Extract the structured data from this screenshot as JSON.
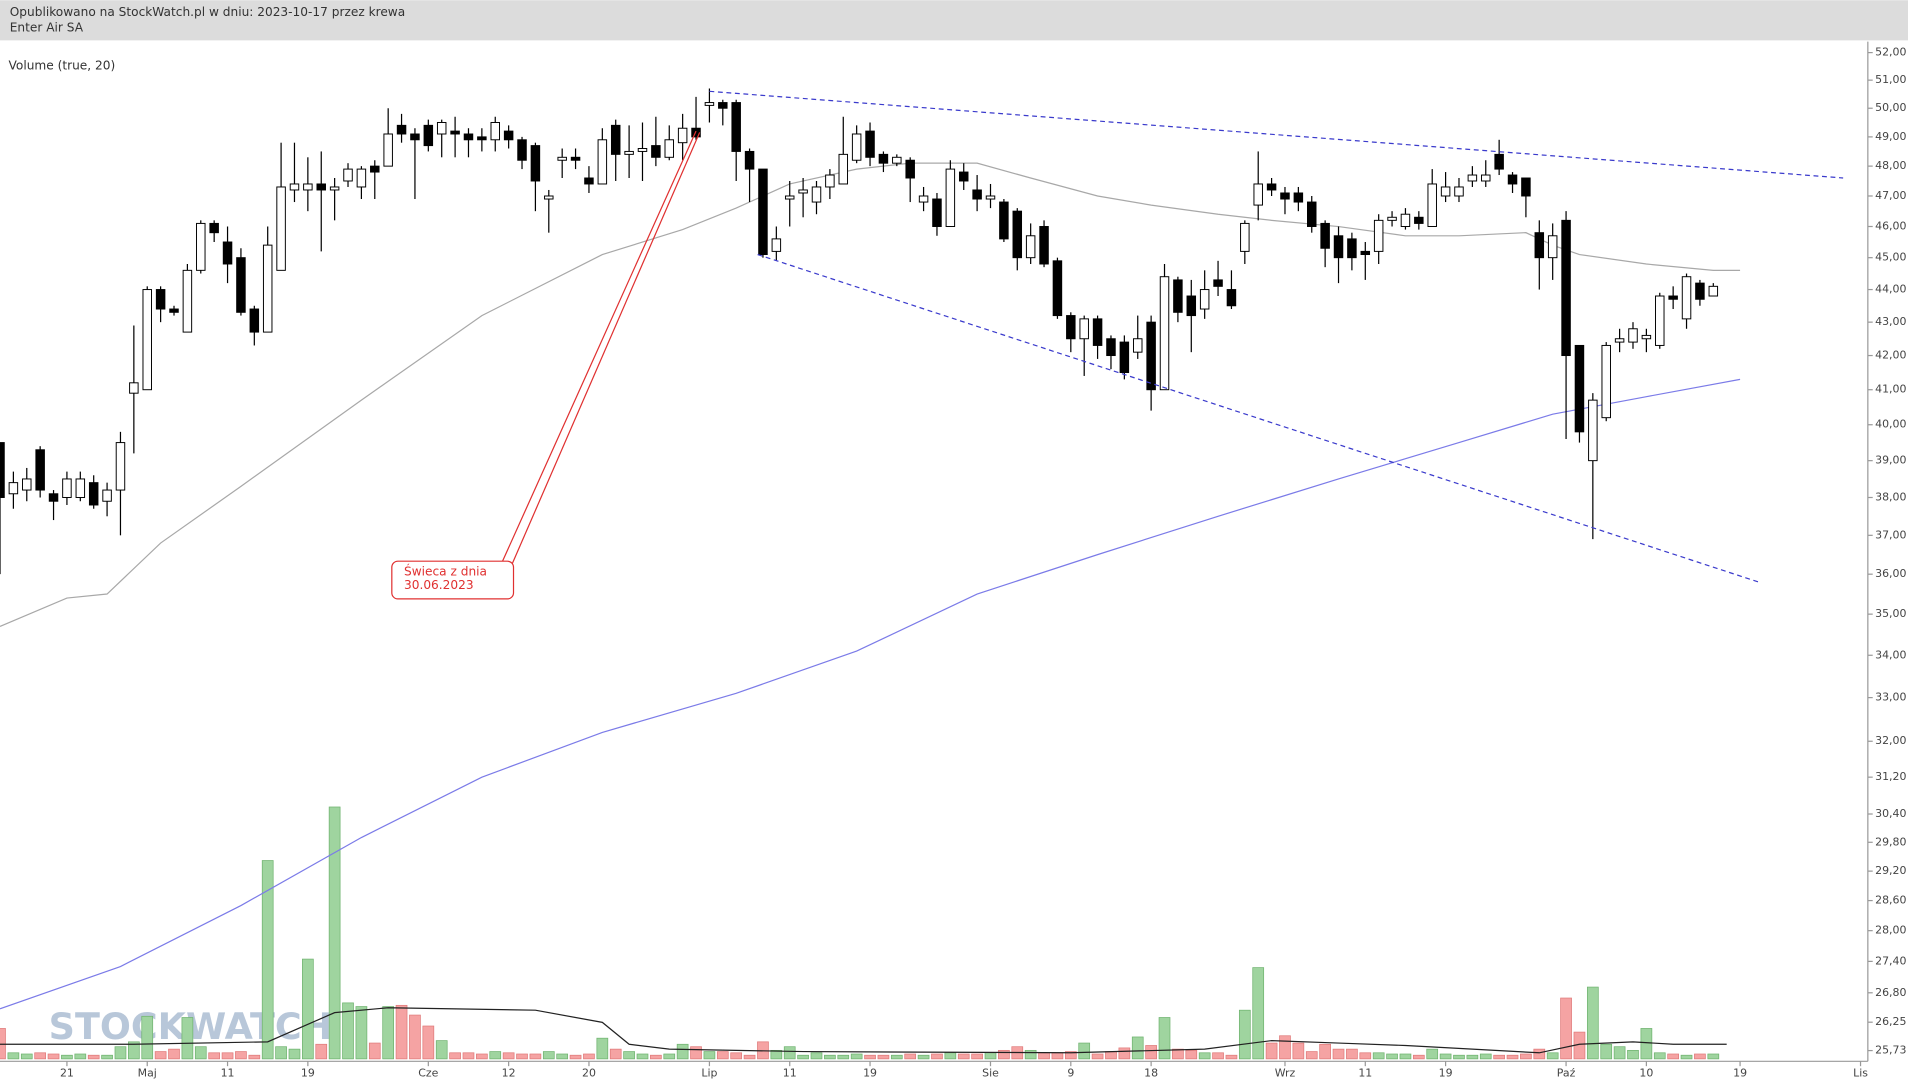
{
  "chart_data": {
    "type": "candlestick",
    "subtitle": "Opublikowano na StockWatch.pl w dniu: 2023-10-17 przez krewa",
    "title": "Enter Air SA",
    "indicator_label": "Volume (true, 20)",
    "watermark": "STOCKWATCH",
    "log": true,
    "grid": false,
    "ylim": [
      25.58,
      52.36
    ],
    "yticks": [
      {
        "value": 52,
        "label": "52,00"
      },
      {
        "value": 51,
        "label": "51,00"
      },
      {
        "value": 50,
        "label": "50,00"
      },
      {
        "value": 49,
        "label": "49,00"
      },
      {
        "value": 48,
        "label": "48,00"
      },
      {
        "value": 47,
        "label": "47,00"
      },
      {
        "value": 46,
        "label": "46,00"
      },
      {
        "value": 45,
        "label": "45,00"
      },
      {
        "value": 44,
        "label": "44,00"
      },
      {
        "value": 43,
        "label": "43,00"
      },
      {
        "value": 42,
        "label": "42,00"
      },
      {
        "value": 41,
        "label": "41,00"
      },
      {
        "value": 40,
        "label": "40,00"
      },
      {
        "value": 39,
        "label": "39,00"
      },
      {
        "value": 38,
        "label": "38,00"
      },
      {
        "value": 37,
        "label": "37,00"
      },
      {
        "value": 36,
        "label": "36,00"
      },
      {
        "value": 35,
        "label": "35,00"
      },
      {
        "value": 34,
        "label": "34,00"
      },
      {
        "value": 33,
        "label": "33,00"
      },
      {
        "value": 32,
        "label": "32,00"
      },
      {
        "value": 31.2,
        "label": "31,20"
      },
      {
        "value": 30.4,
        "label": "30,40"
      },
      {
        "value": 29.8,
        "label": "29,80"
      },
      {
        "value": 29.2,
        "label": "29,20"
      },
      {
        "value": 28.6,
        "label": "28,60"
      },
      {
        "value": 28,
        "label": "28,00"
      },
      {
        "value": 27.4,
        "label": "27,40"
      },
      {
        "value": 26.8,
        "label": "26,80"
      },
      {
        "value": 26.25,
        "label": "26,25"
      },
      {
        "value": 25.73,
        "label": "25,73"
      }
    ],
    "categories": [
      null,
      null,
      null,
      null,
      null,
      "21",
      null,
      null,
      null,
      null,
      null,
      "Maj",
      null,
      null,
      null,
      null,
      null,
      "11",
      null,
      null,
      null,
      null,
      null,
      "19",
      null,
      null,
      null,
      null,
      null,
      null,
      null,
      null,
      "Cze",
      null,
      null,
      null,
      null,
      null,
      "12",
      null,
      null,
      null,
      null,
      null,
      "20",
      null,
      null,
      null,
      null,
      null,
      null,
      null,
      null,
      "Lip",
      null,
      null,
      null,
      null,
      null,
      "11",
      null,
      null,
      null,
      null,
      null,
      "19",
      null,
      null,
      null,
      null,
      null,
      null,
      null,
      null,
      "Sie",
      null,
      null,
      null,
      null,
      null,
      "9",
      null,
      null,
      null,
      null,
      null,
      "18",
      null,
      null,
      null,
      null,
      null,
      null,
      null,
      null,
      null,
      "Wrz",
      null,
      null,
      null,
      null,
      null,
      "11",
      null,
      null,
      null,
      null,
      null,
      "19",
      null,
      null,
      null,
      null,
      null,
      null,
      null,
      null,
      "Paź",
      null,
      null,
      null,
      null,
      null,
      "10",
      null,
      null,
      null,
      null,
      null,
      null,
      "19",
      null,
      null,
      null,
      null,
      null,
      null,
      null,
      null,
      "Lis"
    ],
    "open": [
      39.5,
      38.1,
      38.2,
      39.3,
      38.1,
      38.0,
      38.0,
      38.4,
      37.9,
      38.2,
      40.9,
      41.0,
      44.0,
      43.4,
      42.7,
      44.6,
      46.1,
      45.5,
      45.0,
      43.4,
      42.7,
      44.6,
      47.2,
      47.2,
      47.4,
      47.2,
      47.5,
      47.3,
      48.0,
      48.0,
      49.4,
      49.1,
      49.4,
      49.1,
      49.2,
      49.1,
      49.0,
      48.9,
      49.2,
      48.9,
      48.7,
      46.9,
      48.2,
      48.3,
      47.6,
      47.4,
      49.4,
      48.4,
      48.5,
      48.7,
      48.3,
      48.8,
      49.3,
      50.1,
      50.2,
      50.2,
      48.5,
      47.9,
      45.2,
      46.9,
      47.1,
      46.8,
      47.3,
      47.4,
      48.2,
      49.2,
      48.4,
      48.1,
      48.2,
      46.8,
      46.9,
      46.0,
      47.8,
      47.2,
      46.9,
      46.8,
      46.5,
      45.0,
      46.0,
      44.9,
      43.2,
      42.5,
      43.1,
      42.5,
      42.4,
      42.1,
      43.0,
      41.0,
      44.3,
      43.8,
      43.4,
      44.3,
      44.0,
      45.2,
      46.7,
      47.4,
      47.1,
      47.1,
      46.8,
      46.1,
      45.7,
      45.6,
      45.2,
      45.2,
      46.2,
      46.0,
      46.3,
      46.0,
      47.0,
      47.0,
      47.5,
      47.5,
      48.4,
      47.7,
      47.6,
      45.8,
      45.0,
      46.2,
      42.3,
      39.0,
      40.2,
      42.4,
      42.4,
      42.5,
      42.3,
      43.8,
      43.1,
      44.2,
      43.8,
      null,
      null,
      null,
      null,
      null,
      null,
      null,
      null,
      null,
      null,
      null
    ],
    "high": [
      39.5,
      38.7,
      38.8,
      39.4,
      38.2,
      38.7,
      38.7,
      38.6,
      38.4,
      39.8,
      42.9,
      44.1,
      44.1,
      43.5,
      44.8,
      46.2,
      46.2,
      46.0,
      45.3,
      43.5,
      46.0,
      48.8,
      48.8,
      48.3,
      48.5,
      47.6,
      48.1,
      48.0,
      48.2,
      50.0,
      49.8,
      49.3,
      49.6,
      49.6,
      49.7,
      49.3,
      49.3,
      49.7,
      49.4,
      49.0,
      48.8,
      47.2,
      48.6,
      48.6,
      48.0,
      49.3,
      49.6,
      49.4,
      49.5,
      49.7,
      49.4,
      49.8,
      50.4,
      50.7,
      50.3,
      50.3,
      48.6,
      47.9,
      46.0,
      47.5,
      47.6,
      47.5,
      47.9,
      49.7,
      49.4,
      49.5,
      48.5,
      48.4,
      48.3,
      47.3,
      47.1,
      48.2,
      48.1,
      47.7,
      47.4,
      46.9,
      46.6,
      46.1,
      46.2,
      45.0,
      43.3,
      43.2,
      43.2,
      42.6,
      42.6,
      43.2,
      43.2,
      44.8,
      44.4,
      44.3,
      44.6,
      44.9,
      44.6,
      46.2,
      48.5,
      47.6,
      47.3,
      47.3,
      47.0,
      46.2,
      46.0,
      45.8,
      45.5,
      46.4,
      46.5,
      46.6,
      46.5,
      47.9,
      47.8,
      47.6,
      48.0,
      48.2,
      48.9,
      47.8,
      47.6,
      46.2,
      46.1,
      46.5,
      42.3,
      40.9,
      42.4,
      42.8,
      43.0,
      42.8,
      43.9,
      44.1,
      44.5,
      44.3,
      44.2,
      null,
      null,
      null,
      null,
      null,
      null,
      null,
      null,
      null,
      null,
      null
    ],
    "low": [
      36.0,
      37.7,
      37.9,
      38.0,
      37.4,
      37.8,
      37.9,
      37.7,
      37.5,
      37.0,
      39.2,
      41.0,
      43.0,
      43.2,
      42.7,
      44.5,
      45.5,
      44.2,
      43.2,
      42.3,
      42.7,
      44.6,
      46.8,
      46.5,
      45.2,
      46.2,
      47.3,
      46.9,
      46.9,
      48.0,
      48.8,
      46.9,
      48.5,
      48.3,
      48.3,
      48.3,
      48.5,
      48.5,
      48.6,
      47.9,
      46.5,
      45.8,
      47.6,
      47.9,
      47.1,
      47.4,
      47.5,
      47.6,
      47.5,
      48.0,
      48.2,
      48.2,
      48.9,
      49.5,
      49.4,
      47.5,
      46.8,
      45.0,
      44.9,
      46.0,
      46.3,
      46.4,
      46.9,
      47.4,
      48.1,
      48.0,
      47.8,
      48.0,
      46.8,
      46.5,
      45.7,
      46.0,
      47.2,
      46.5,
      46.6,
      45.5,
      44.6,
      44.8,
      44.7,
      43.1,
      42.1,
      41.4,
      41.9,
      41.6,
      41.3,
      41.9,
      40.4,
      41.0,
      43.0,
      42.1,
      43.1,
      43.8,
      43.4,
      44.8,
      46.2,
      47.0,
      46.4,
      46.5,
      45.8,
      44.7,
      44.2,
      44.6,
      44.3,
      44.8,
      46.0,
      45.9,
      45.9,
      46.0,
      46.8,
      46.8,
      47.3,
      47.3,
      47.7,
      47.1,
      46.3,
      44.0,
      44.3,
      39.6,
      39.5,
      36.9,
      40.1,
      42.1,
      42.2,
      42.1,
      42.2,
      43.4,
      42.8,
      43.5,
      43.8,
      null,
      null,
      null,
      null,
      null,
      null,
      null,
      null,
      null,
      null,
      null
    ],
    "close": [
      38.0,
      38.4,
      38.5,
      38.2,
      37.9,
      38.5,
      38.5,
      37.8,
      38.2,
      39.5,
      41.2,
      44.0,
      43.4,
      43.3,
      44.6,
      46.1,
      45.8,
      44.8,
      43.3,
      42.7,
      45.4,
      47.3,
      47.4,
      47.4,
      47.2,
      47.3,
      47.9,
      47.9,
      47.8,
      49.1,
      49.1,
      48.9,
      48.7,
      49.5,
      49.1,
      48.9,
      48.9,
      49.5,
      48.9,
      48.2,
      47.5,
      47.0,
      48.3,
      48.2,
      47.4,
      48.9,
      48.4,
      48.5,
      48.6,
      48.3,
      48.9,
      49.3,
      49.0,
      50.2,
      50.0,
      48.5,
      47.9,
      45.1,
      45.6,
      47.0,
      47.2,
      47.3,
      47.7,
      48.4,
      49.1,
      48.3,
      48.1,
      48.3,
      47.6,
      47.0,
      46.0,
      47.9,
      47.5,
      46.9,
      47.0,
      45.6,
      45.0,
      45.7,
      44.8,
      43.2,
      42.5,
      43.1,
      42.3,
      42.0,
      41.5,
      42.5,
      41.0,
      44.4,
      43.3,
      43.2,
      44.0,
      44.1,
      43.5,
      46.1,
      47.4,
      47.2,
      46.9,
      46.8,
      46.0,
      45.3,
      45.0,
      45.0,
      45.1,
      46.2,
      46.3,
      46.4,
      46.1,
      47.4,
      47.3,
      47.3,
      47.7,
      47.7,
      47.9,
      47.4,
      47.0,
      45.0,
      45.7,
      42.0,
      39.8,
      40.7,
      42.3,
      42.5,
      42.8,
      42.6,
      43.8,
      43.7,
      44.4,
      43.7,
      44.1,
      null,
      null,
      null,
      null,
      null,
      null,
      null,
      null,
      null,
      null,
      null
    ],
    "volume": [
      25,
      5,
      4,
      5,
      4,
      3,
      4,
      3,
      3,
      10,
      14,
      35,
      6,
      8,
      34,
      10,
      5,
      5,
      6,
      3,
      163,
      10,
      8,
      82,
      12,
      207,
      46,
      43,
      13,
      43,
      44,
      36,
      27,
      15,
      5,
      5,
      4,
      6,
      5,
      4,
      4,
      6,
      4,
      3,
      4,
      17,
      8,
      6,
      4,
      3,
      4,
      12,
      10,
      6,
      6,
      5,
      3,
      14,
      7,
      10,
      3,
      5,
      3,
      3,
      4,
      3,
      3,
      3,
      4,
      3,
      4,
      5,
      4,
      4,
      5,
      7,
      10,
      7,
      5,
      5,
      6,
      13,
      4,
      6,
      9,
      18,
      11,
      34,
      8,
      7,
      5,
      5,
      3,
      40,
      75,
      13,
      19,
      13,
      6,
      12,
      8,
      8,
      5,
      5,
      4,
      4,
      3,
      8,
      4,
      3,
      3,
      4,
      3,
      3,
      4,
      8,
      5,
      50,
      22,
      59,
      12,
      10,
      7,
      25,
      5,
      4,
      3,
      4,
      4,
      null,
      null,
      null,
      null,
      null,
      null,
      null,
      null,
      null,
      null,
      null
    ],
    "up_color": "#ffffff",
    "down_color": "#000000",
    "volume_up_color": "#9fd49f",
    "volume_down_color": "#f5a3a3",
    "overlays": [
      {
        "axis": "price",
        "color": "#a8a8a8",
        "x": [
          0,
          5,
          8,
          12,
          18,
          27,
          36,
          45,
          51,
          55,
          59,
          64,
          68,
          73,
          77,
          82,
          86,
          91,
          95,
          100,
          105,
          109,
          114,
          116,
          118,
          123,
          128,
          130
        ],
        "values": [
          34.7,
          35.4,
          35.5,
          36.8,
          38.3,
          40.7,
          43.2,
          45.1,
          45.9,
          46.6,
          47.4,
          47.9,
          48.1,
          48.1,
          47.6,
          47.0,
          46.7,
          46.4,
          46.2,
          46.0,
          45.7,
          45.7,
          45.8,
          45.4,
          45.1,
          44.8,
          44.6,
          44.6
        ]
      },
      {
        "axis": "price",
        "color": "#7b7be8",
        "x": [
          0,
          9,
          18,
          27,
          36,
          45,
          55,
          64,
          73,
          82,
          91,
          100,
          109,
          116,
          123,
          130
        ],
        "values": [
          26.5,
          27.3,
          28.5,
          29.9,
          31.2,
          32.2,
          33.1,
          34.1,
          35.5,
          36.5,
          37.5,
          38.5,
          39.5,
          40.3,
          40.8,
          41.3
        ]
      },
      {
        "axis": "volume",
        "color": "#222222",
        "x": [
          0,
          10,
          20,
          25,
          29,
          40,
          45,
          47,
          50,
          60,
          80,
          90,
          95,
          100,
          105,
          110,
          115,
          118,
          122,
          125,
          129
        ],
        "values": [
          12,
          12,
          14,
          38,
          42,
          40,
          30,
          12,
          8,
          6,
          5,
          8,
          15,
          13,
          11,
          8,
          5,
          12,
          14,
          12,
          12
        ]
      }
    ],
    "trendlines": [
      {
        "color": "#3a3acc",
        "x": [
          53,
          137.7
        ],
        "values": [
          50.6,
          47.6
        ]
      },
      {
        "color": "#3a3acc",
        "x": [
          56.6,
          131.4
        ],
        "values": [
          45.1,
          35.8
        ]
      }
    ],
    "annotation": {
      "text": [
        "Świeca z dnia",
        "30.06.2023"
      ],
      "x": 52,
      "y": 49.2,
      "color": "#e03030"
    }
  }
}
